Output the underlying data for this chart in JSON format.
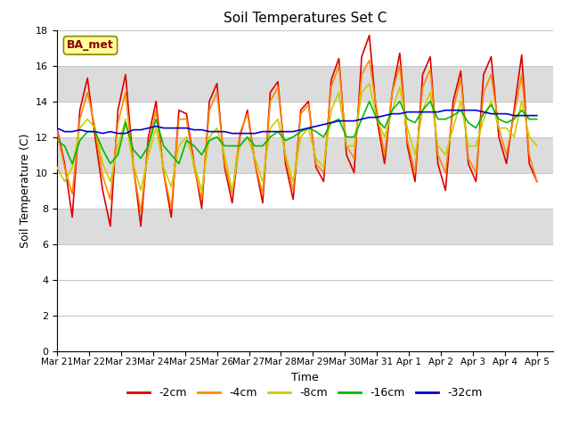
{
  "title": "Soil Temperatures Set C",
  "xlabel": "Time",
  "ylabel": "Soil Temperature (C)",
  "ylim": [
    0,
    18
  ],
  "xlim": [
    0,
    15.5
  ],
  "x_tick_labels": [
    "Mar 21",
    "Mar 22",
    "Mar 23",
    "Mar 24",
    "Mar 25",
    "Mar 26",
    "Mar 27",
    "Mar 28",
    "Mar 29",
    "Mar 30",
    "Mar 31",
    "Apr 1",
    "Apr 2",
    "Apr 3",
    "Apr 4",
    "Apr 5"
  ],
  "annotation_text": "BA_met",
  "annotation_color": "#8B0000",
  "annotation_bg": "#FFFF99",
  "series": {
    "-2cm": {
      "color": "#DD0000",
      "lw": 1.2
    },
    "-4cm": {
      "color": "#FF8800",
      "lw": 1.2
    },
    "-8cm": {
      "color": "#CCCC00",
      "lw": 1.2
    },
    "-16cm": {
      "color": "#00BB00",
      "lw": 1.2
    },
    "-32cm": {
      "color": "#0000CC",
      "lw": 1.2
    }
  },
  "legend_order": [
    "-2cm",
    "-4cm",
    "-8cm",
    "-16cm",
    "-32cm"
  ],
  "figure_bg": "#FFFFFF",
  "plot_bg": "#FFFFFF",
  "band_color": "#DCDCDC",
  "band_ranges": [
    [
      6,
      8
    ],
    [
      10,
      12
    ],
    [
      14,
      16
    ]
  ],
  "grid_color": "#C8C8C8",
  "t_neg2": [
    12.5,
    10.5,
    7.5,
    13.5,
    15.3,
    12.0,
    9.0,
    7.0,
    13.5,
    15.5,
    10.5,
    7.0,
    12.0,
    14.0,
    10.0,
    7.5,
    13.5,
    13.3,
    10.5,
    8.0,
    14.0,
    15.0,
    10.3,
    8.3,
    12.0,
    13.5,
    10.5,
    8.3,
    14.5,
    15.1,
    10.5,
    8.5,
    13.5,
    14.0,
    10.3,
    9.5,
    15.2,
    16.4,
    11.0,
    10.0,
    16.5,
    17.7,
    13.0,
    10.5,
    14.5,
    16.7,
    11.5,
    9.5,
    15.5,
    16.5,
    10.5,
    9.0,
    14.0,
    15.7,
    10.5,
    9.5,
    15.5,
    16.5,
    12.0,
    10.5,
    13.5,
    16.6,
    10.5,
    9.5
  ],
  "t_neg4": [
    12.3,
    10.3,
    8.8,
    13.0,
    14.5,
    12.5,
    9.8,
    8.5,
    12.8,
    14.5,
    10.3,
    7.8,
    11.5,
    13.5,
    10.0,
    8.0,
    13.0,
    13.0,
    10.3,
    8.5,
    13.5,
    14.5,
    10.5,
    8.8,
    12.2,
    13.3,
    10.5,
    8.8,
    14.0,
    14.8,
    10.8,
    9.0,
    13.3,
    13.8,
    10.5,
    10.0,
    14.8,
    16.0,
    11.5,
    10.8,
    15.5,
    16.3,
    13.5,
    11.0,
    14.5,
    16.0,
    11.8,
    10.0,
    14.8,
    15.8,
    11.0,
    10.0,
    13.5,
    15.3,
    10.8,
    10.0,
    14.5,
    15.5,
    12.5,
    11.0,
    13.2,
    15.5,
    11.0,
    9.5
  ],
  "t_neg8": [
    10.3,
    9.5,
    10.3,
    12.5,
    13.0,
    12.5,
    10.5,
    9.5,
    11.5,
    13.0,
    10.5,
    9.0,
    11.0,
    12.5,
    10.3,
    9.2,
    11.5,
    12.0,
    10.5,
    9.0,
    12.0,
    12.5,
    11.0,
    9.0,
    11.5,
    12.0,
    10.8,
    9.5,
    12.5,
    13.0,
    11.0,
    9.5,
    12.0,
    12.5,
    10.8,
    10.3,
    13.5,
    14.5,
    11.5,
    11.5,
    14.5,
    15.0,
    13.0,
    12.0,
    13.5,
    14.8,
    12.5,
    11.0,
    13.5,
    14.5,
    11.5,
    11.0,
    12.5,
    14.0,
    11.5,
    11.5,
    13.0,
    14.0,
    12.5,
    12.5,
    12.0,
    14.0,
    12.0,
    11.5
  ],
  "t_neg16": [
    11.8,
    11.5,
    10.5,
    11.8,
    12.3,
    12.3,
    11.3,
    10.5,
    11.0,
    12.8,
    11.3,
    10.8,
    11.5,
    13.0,
    11.5,
    11.0,
    10.5,
    11.8,
    11.5,
    11.0,
    11.8,
    12.0,
    11.5,
    11.5,
    11.5,
    12.0,
    11.5,
    11.5,
    12.0,
    12.3,
    11.8,
    12.0,
    12.3,
    12.5,
    12.3,
    12.0,
    12.8,
    13.0,
    12.0,
    12.0,
    13.0,
    14.0,
    13.0,
    12.5,
    13.5,
    14.0,
    13.0,
    12.8,
    13.5,
    14.0,
    13.0,
    13.0,
    13.2,
    13.5,
    12.8,
    12.5,
    13.3,
    13.8,
    13.0,
    12.8,
    13.0,
    13.5,
    13.0,
    13.0
  ],
  "t_neg32": [
    12.5,
    12.3,
    12.3,
    12.4,
    12.3,
    12.3,
    12.2,
    12.3,
    12.2,
    12.2,
    12.4,
    12.4,
    12.5,
    12.6,
    12.5,
    12.5,
    12.5,
    12.5,
    12.4,
    12.4,
    12.3,
    12.3,
    12.3,
    12.2,
    12.2,
    12.2,
    12.2,
    12.3,
    12.3,
    12.3,
    12.3,
    12.3,
    12.4,
    12.5,
    12.6,
    12.7,
    12.8,
    12.9,
    12.9,
    12.9,
    13.0,
    13.1,
    13.1,
    13.2,
    13.3,
    13.3,
    13.4,
    13.4,
    13.4,
    13.4,
    13.4,
    13.5,
    13.5,
    13.5,
    13.5,
    13.5,
    13.4,
    13.3,
    13.3,
    13.3,
    13.2,
    13.2,
    13.2,
    13.2
  ]
}
